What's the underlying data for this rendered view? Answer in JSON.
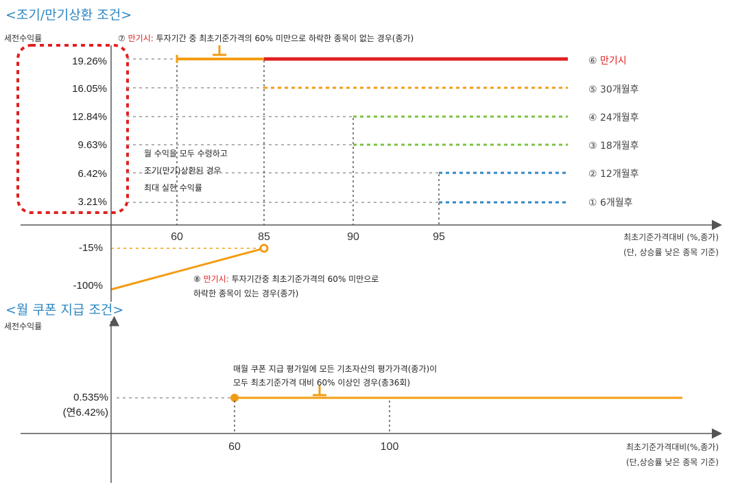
{
  "colors": {
    "accent_blue": "#2e86c1",
    "orange": "#f39c12",
    "red": "#e02020",
    "green": "#7cc242",
    "blue_dot": "#2e86c1",
    "text": "#222222"
  },
  "section1": {
    "title": "<조기/만기상환 조건>",
    "y_axis_label": "세전수익률",
    "rate_labels": [
      "19.26%",
      "16.05%",
      "12.84%",
      "9.63%",
      "6.42%",
      "3.21%"
    ],
    "negative_labels": [
      "-15%",
      "-100%"
    ],
    "x_ticks": [
      "60",
      "85",
      "90",
      "95"
    ],
    "x_axis_label": "최초기준가격대비 (%,종가)",
    "x_axis_sub": "(단, 상승률 낮은 종목 기준)",
    "note7_prefix": "⑦ ",
    "note7_red": "만기시:",
    "note7_text": " 투자기간 중 최초기준가격의 60% 미만으로 하락한 종목이 없는 경우(종가)",
    "note8_prefix": "⑧ ",
    "note8_red": "만기시:",
    "note8_line1": " 투자기간중 최초기준가격의 60% 미만으로",
    "note8_line2": "하락한 종목이 있는 경우(종가)",
    "center_note": [
      "월 수익을 모두 수령하고",
      "조기(만기)상환된 경우",
      "최대 실현 수익률"
    ],
    "right_labels": [
      {
        "num": "⑥",
        "text": "만기시"
      },
      {
        "num": "⑤",
        "text": "30개월후"
      },
      {
        "num": "④",
        "text": "24개월후"
      },
      {
        "num": "③",
        "text": "18개월후"
      },
      {
        "num": "②",
        "text": "12개월후"
      },
      {
        "num": "①",
        "text": "6개월후"
      }
    ]
  },
  "section2": {
    "title": "<월 쿠폰 지급 조건>",
    "y_axis_label": "세전수익률",
    "rate_label": "0.535%",
    "rate_sub": "(연6.42%)",
    "x_ticks": [
      "60",
      "100"
    ],
    "x_axis_label": "최초기준가격대비(%,종가)",
    "x_axis_sub": "(단,상승률 낮은 종목 기준)",
    "note_line1": "매월 쿠폰 지급 평가일에 모든 기초자산의 평가가격(종가)이",
    "note_line2": "모두 최초기준가격 대비 60% 이상인 경우(총36회)"
  }
}
